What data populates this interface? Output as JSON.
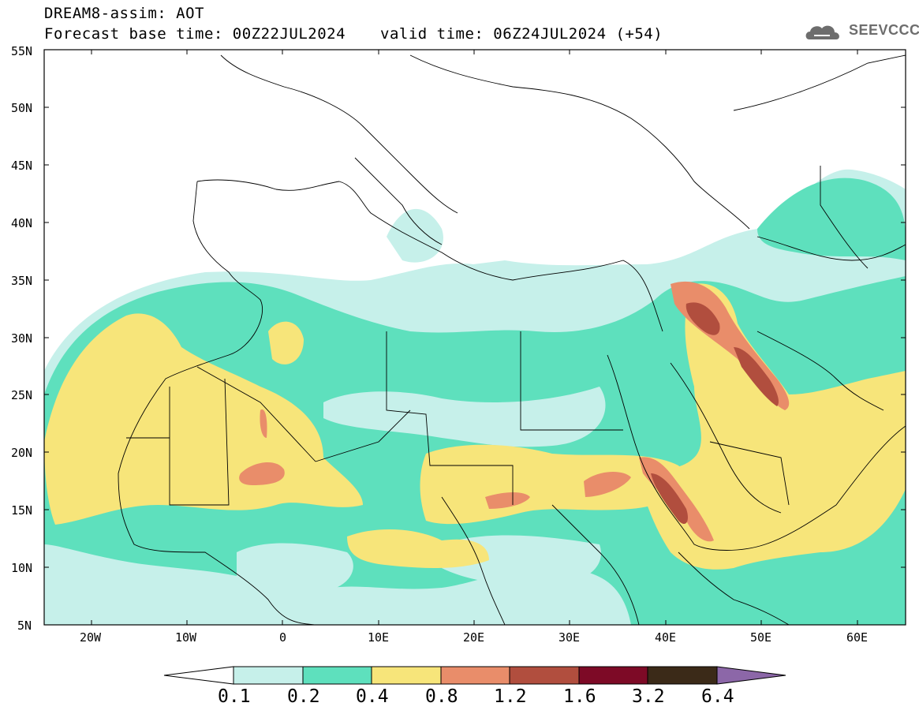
{
  "header": {
    "model_line": "DREAM8-assim: AOT",
    "forecast_base": "Forecast base time: 00Z22JUL2024",
    "valid_time": "valid time: 06Z24JUL2024 (+54)"
  },
  "logo": {
    "text": "SEEVCCC",
    "icon": "cloud-logo-icon"
  },
  "axes": {
    "lat_labels": [
      "55N",
      "50N",
      "45N",
      "40N",
      "35N",
      "30N",
      "25N",
      "20N",
      "15N",
      "10N",
      "5N"
    ],
    "lon_labels": [
      "20W",
      "10W",
      "0",
      "10E",
      "20E",
      "30E",
      "40E",
      "50E",
      "60E"
    ]
  },
  "colorbar": {
    "labels": [
      "0.1",
      "0.2",
      "0.4",
      "0.8",
      "1.2",
      "1.6",
      "3.2",
      "6.4"
    ],
    "colors": [
      "#ffffff",
      "#c6f0ea",
      "#5ee0bd",
      "#f7e57a",
      "#e98d6a",
      "#b14e3e",
      "#7d0a26",
      "#3b2a18",
      "#8c67a8"
    ]
  },
  "map_data": {
    "variable": "AOT",
    "lat_range": [
      5,
      55
    ],
    "lon_range": [
      -25,
      65
    ],
    "levels": [
      0.1,
      0.2,
      0.4,
      0.8,
      1.2,
      1.6,
      3.2,
      6.4
    ]
  }
}
